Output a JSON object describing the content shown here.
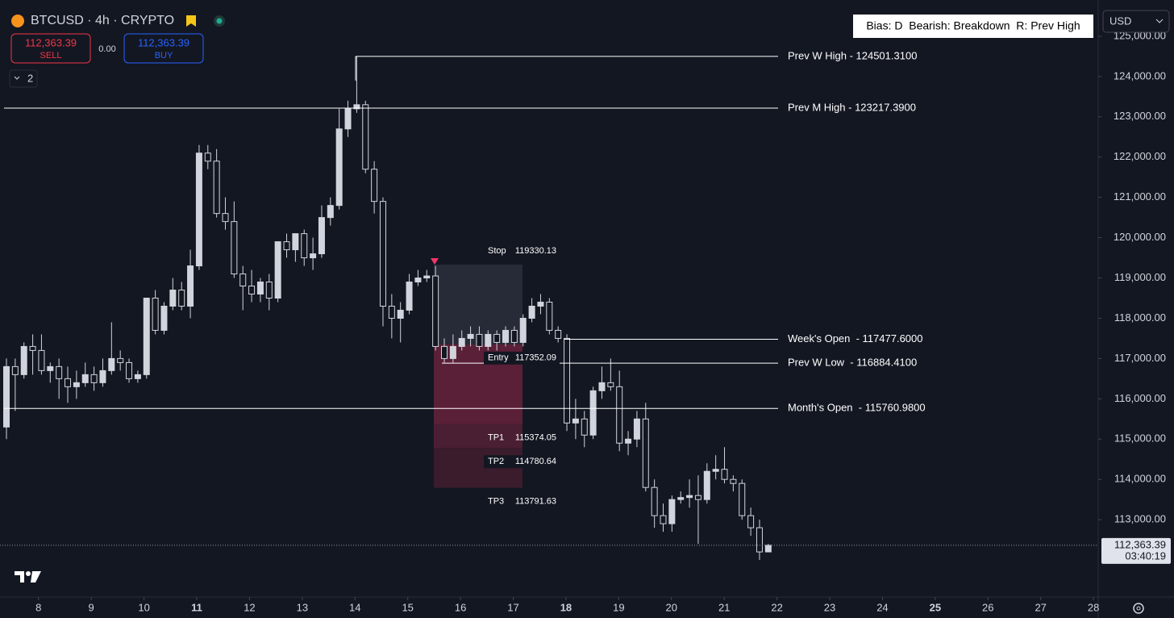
{
  "header": {
    "symbol": "BTCUSD · 4h · CRYPTO",
    "sell_price": "112,363.39",
    "sell_label": "SELL",
    "spread": "0.00",
    "buy_price": "112,363.39",
    "buy_label": "BUY",
    "indicator_count": "2",
    "currency": "USD"
  },
  "chart_data": {
    "type": "candlestick",
    "annotation": "Bias: D  Bearish: Breakdown  R: Prev High",
    "xlim": [
      7.27,
      28.09
    ],
    "xticks": [
      8,
      9,
      10,
      11,
      12,
      13,
      14,
      15,
      16,
      17,
      18,
      19,
      20,
      21,
      22,
      23,
      24,
      25,
      26,
      27,
      28
    ],
    "xticks_bold": [
      11,
      18,
      25
    ],
    "ylim": [
      111080,
      125900
    ],
    "yticks": [
      {
        "value": 113000,
        "label": "113,000.00"
      },
      {
        "value": 114000,
        "label": "114,000.00"
      },
      {
        "value": 115000,
        "label": "115,000.00"
      },
      {
        "value": 116000,
        "label": "116,000.00"
      },
      {
        "value": 117000,
        "label": "117,000.00"
      },
      {
        "value": 118000,
        "label": "118,000.00"
      },
      {
        "value": 119000,
        "label": "119,000.00"
      },
      {
        "value": 120000,
        "label": "120,000.00"
      },
      {
        "value": 121000,
        "label": "121,000.00"
      },
      {
        "value": 122000,
        "label": "122,000.00"
      },
      {
        "value": 123000,
        "label": "123,000.00"
      },
      {
        "value": 124000,
        "label": "124,000.00"
      },
      {
        "value": 125000,
        "label": "125,000.00"
      }
    ],
    "up_color": "#d1d4dc",
    "down_color": "#131722",
    "wick_color": "#d1d4dc",
    "open": [
      115300,
      116800,
      116600,
      117300,
      117200,
      116700,
      116800,
      116500,
      116300,
      116400,
      116600,
      116400,
      116700,
      117000,
      116900,
      116500,
      116600,
      118500,
      117700,
      118300,
      118700,
      118300,
      119300,
      122100,
      121900,
      120600,
      120400,
      119100,
      118800,
      118600,
      118900,
      118500,
      119900,
      119700,
      120100,
      119500,
      119600,
      120500,
      120800,
      122700,
      123200,
      123300,
      121700,
      120900,
      118300,
      118000,
      118200,
      118900,
      119000,
      119050,
      117300,
      117000,
      117300,
      117500,
      117600,
      117300,
      117600,
      117400,
      117700,
      117400,
      118000,
      118300,
      118400,
      117700,
      117500,
      115400,
      115500,
      115100,
      116200,
      116400,
      116300,
      114900,
      115000,
      115500,
      113800,
      113100,
      112900,
      113500,
      113550,
      113600,
      113500,
      114200,
      114250,
      114000,
      113900,
      113100,
      112800,
      112200
    ],
    "high": [
      117000,
      117000,
      117400,
      117600,
      117600,
      116900,
      117000,
      116800,
      116700,
      116900,
      116800,
      117000,
      117900,
      117200,
      117000,
      116700,
      118500,
      118700,
      118400,
      119000,
      118900,
      119700,
      122300,
      122300,
      122200,
      121000,
      120900,
      119300,
      119200,
      119000,
      119100,
      119900,
      120100,
      120100,
      120200,
      120000,
      120800,
      121000,
      123200,
      123400,
      124500,
      123400,
      121900,
      121000,
      118600,
      118400,
      119100,
      119200,
      119200,
      119300,
      117500,
      117600,
      117700,
      117800,
      117800,
      117700,
      117700,
      117800,
      117800,
      118100,
      118500,
      118600,
      118500,
      117800,
      117600,
      116000,
      115700,
      116300,
      116800,
      117000,
      116700,
      115200,
      115700,
      115900,
      114000,
      113400,
      113600,
      113700,
      114000,
      114100,
      114400,
      114600,
      114800,
      114100,
      114000,
      113300,
      113000,
      112400
    ],
    "low": [
      115000,
      115700,
      116500,
      116600,
      116600,
      116400,
      116000,
      115900,
      116000,
      116300,
      116200,
      116300,
      116600,
      116700,
      116400,
      116400,
      116500,
      117600,
      117600,
      118200,
      118200,
      118000,
      119200,
      121700,
      120500,
      120200,
      119000,
      118200,
      118400,
      118400,
      118200,
      118400,
      119500,
      119400,
      119300,
      119200,
      119500,
      120300,
      120700,
      122500,
      123100,
      121600,
      120600,
      117800,
      117500,
      117400,
      118100,
      118800,
      118900,
      117200,
      116900,
      116900,
      117200,
      117300,
      117200,
      117200,
      117200,
      117300,
      117300,
      117300,
      117900,
      118100,
      117600,
      117400,
      115200,
      115000,
      114800,
      115000,
      116000,
      116200,
      114700,
      114600,
      114800,
      113700,
      112800,
      112700,
      112700,
      113400,
      113300,
      112400,
      113400,
      114000,
      113900,
      113700,
      113000,
      112600,
      112000,
      112200
    ],
    "close": [
      116800,
      116600,
      117300,
      117200,
      116700,
      116800,
      116500,
      116300,
      116400,
      116600,
      116400,
      116700,
      117000,
      116900,
      116500,
      116600,
      118500,
      117700,
      118300,
      118700,
      118300,
      119300,
      122100,
      121900,
      120600,
      120400,
      119100,
      118800,
      118600,
      118900,
      118500,
      119900,
      119700,
      120100,
      119500,
      119600,
      120500,
      120800,
      122700,
      123200,
      123300,
      121700,
      120900,
      118300,
      118000,
      118200,
      118900,
      119000,
      119050,
      117300,
      117000,
      117300,
      117500,
      117600,
      117300,
      117600,
      117400,
      117700,
      117400,
      118000,
      118300,
      118400,
      117700,
      117500,
      115400,
      115500,
      115100,
      116200,
      116400,
      116300,
      114900,
      115000,
      115500,
      113800,
      113100,
      112900,
      113500,
      113550,
      113600,
      113500,
      114200,
      114250,
      114000,
      113900,
      113100,
      112800,
      112200,
      112363.39
    ],
    "levels": [
      {
        "label": "Prev W High - 124501.3100",
        "value": 124501.31
      },
      {
        "label": "Prev M High - 123217.3900",
        "value": 123217.39
      },
      {
        "label": "Week's Open  - 117477.6000",
        "value": 117477.6
      },
      {
        "label": "Prev W Low  - 116884.4100",
        "value": 116884.41
      },
      {
        "label": "Month's Open  - 115760.9800",
        "value": 115760.98
      }
    ],
    "position": [
      {
        "name": "Stop",
        "value": 119330.13
      },
      {
        "name": "Entry",
        "value": 117352.09
      },
      {
        "name": "TP1",
        "value": 115374.05
      },
      {
        "name": "TP2",
        "value": 114780.64
      },
      {
        "name": "TP3",
        "value": 113791.63
      }
    ],
    "current_price": {
      "value": 112363.39,
      "label": "112,363.39"
    },
    "countdown": "03:40:19"
  }
}
